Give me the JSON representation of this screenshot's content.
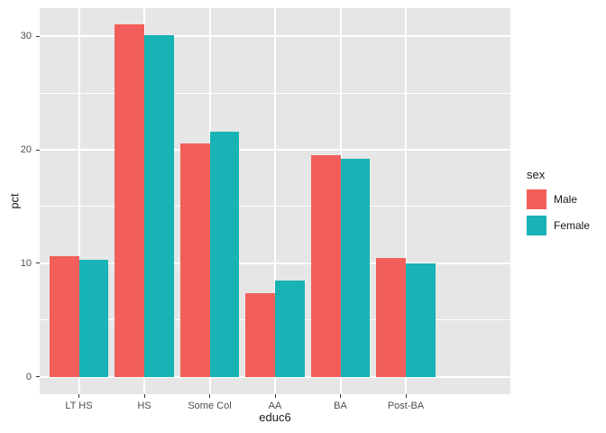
{
  "chart_data": {
    "type": "bar",
    "title": "",
    "xlabel": "educ6",
    "ylabel": "pct",
    "categories": [
      "LT HS",
      "HS",
      "Some Col",
      "AA",
      "BA",
      "Post-BA"
    ],
    "series": [
      {
        "name": "Male",
        "color": "#F25F5A",
        "values": [
          10.6,
          31.1,
          20.6,
          7.4,
          19.5,
          10.5
        ]
      },
      {
        "name": "Female",
        "color": "#17B3B5",
        "values": [
          10.3,
          30.1,
          21.6,
          8.5,
          19.2,
          10.0
        ]
      }
    ],
    "y_ticks": [
      0,
      10,
      20,
      30
    ],
    "y_minor_ticks": [
      5,
      15,
      25
    ],
    "ylim": [
      0,
      31.1
    ],
    "ylim_expanded": [
      -1.55,
      32.5
    ],
    "grid": true,
    "legend": {
      "title": "sex",
      "position": "right"
    },
    "colors": {
      "panel_bg": "#E6E6E6",
      "grid": "#FFFFFF",
      "tick_label": "#4D4D4D",
      "axis_title": "#1A1A1A",
      "tick_mark": "#333333"
    },
    "bar_layout": {
      "dodge_width": 0.9,
      "category_padding": 0.6
    }
  }
}
